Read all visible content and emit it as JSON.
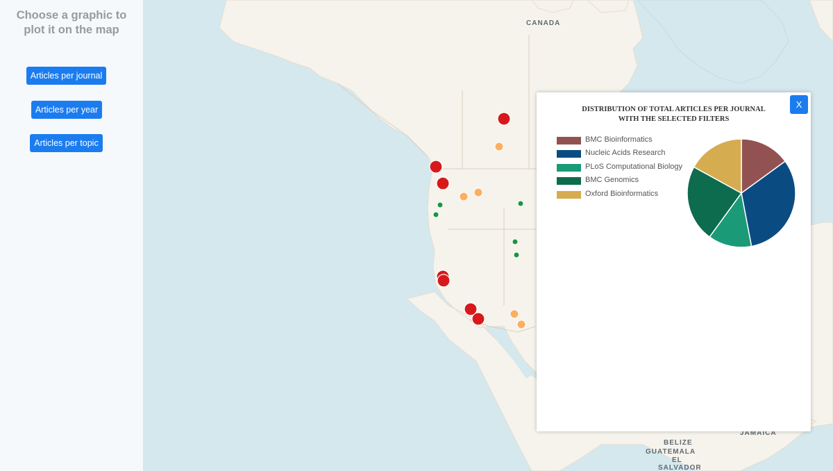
{
  "sidebar": {
    "title_line1": "Choose a graphic to",
    "title_line2": "plot it on the map",
    "buttons": [
      {
        "label": "Articles per journal"
      },
      {
        "label": "Articles per year"
      },
      {
        "label": "Articles per topic"
      }
    ]
  },
  "map": {
    "labels": [
      "CANADA",
      "BELIZE",
      "GUATEMALA",
      "EL",
      "SALVADOR",
      "JAMAICA"
    ],
    "colors": {
      "large": "#d7191c",
      "medium": "#fdae61",
      "small": "#1a9641"
    }
  },
  "popup": {
    "title_line1": "DISTRIBUTION OF TOTAL ARTICLES PER JOURNAL",
    "title_line2": "WITH THE SELECTED FILTERS",
    "close_label": "X"
  },
  "chart_data": {
    "type": "pie",
    "title": "DISTRIBUTION OF TOTAL ARTICLES PER JOURNAL WITH THE SELECTED FILTERS",
    "legend_position": "left",
    "categories": [
      "BMC Bioinformatics",
      "Nucleic Acids Research",
      "PLoS Computational Biology",
      "BMC Genomics",
      "Oxford Bioinformatics"
    ],
    "values": [
      15,
      32,
      13,
      23,
      17
    ],
    "colors": [
      "#935252",
      "#0a4c82",
      "#1b9a78",
      "#0d6b4e",
      "#d5ac4f"
    ]
  }
}
